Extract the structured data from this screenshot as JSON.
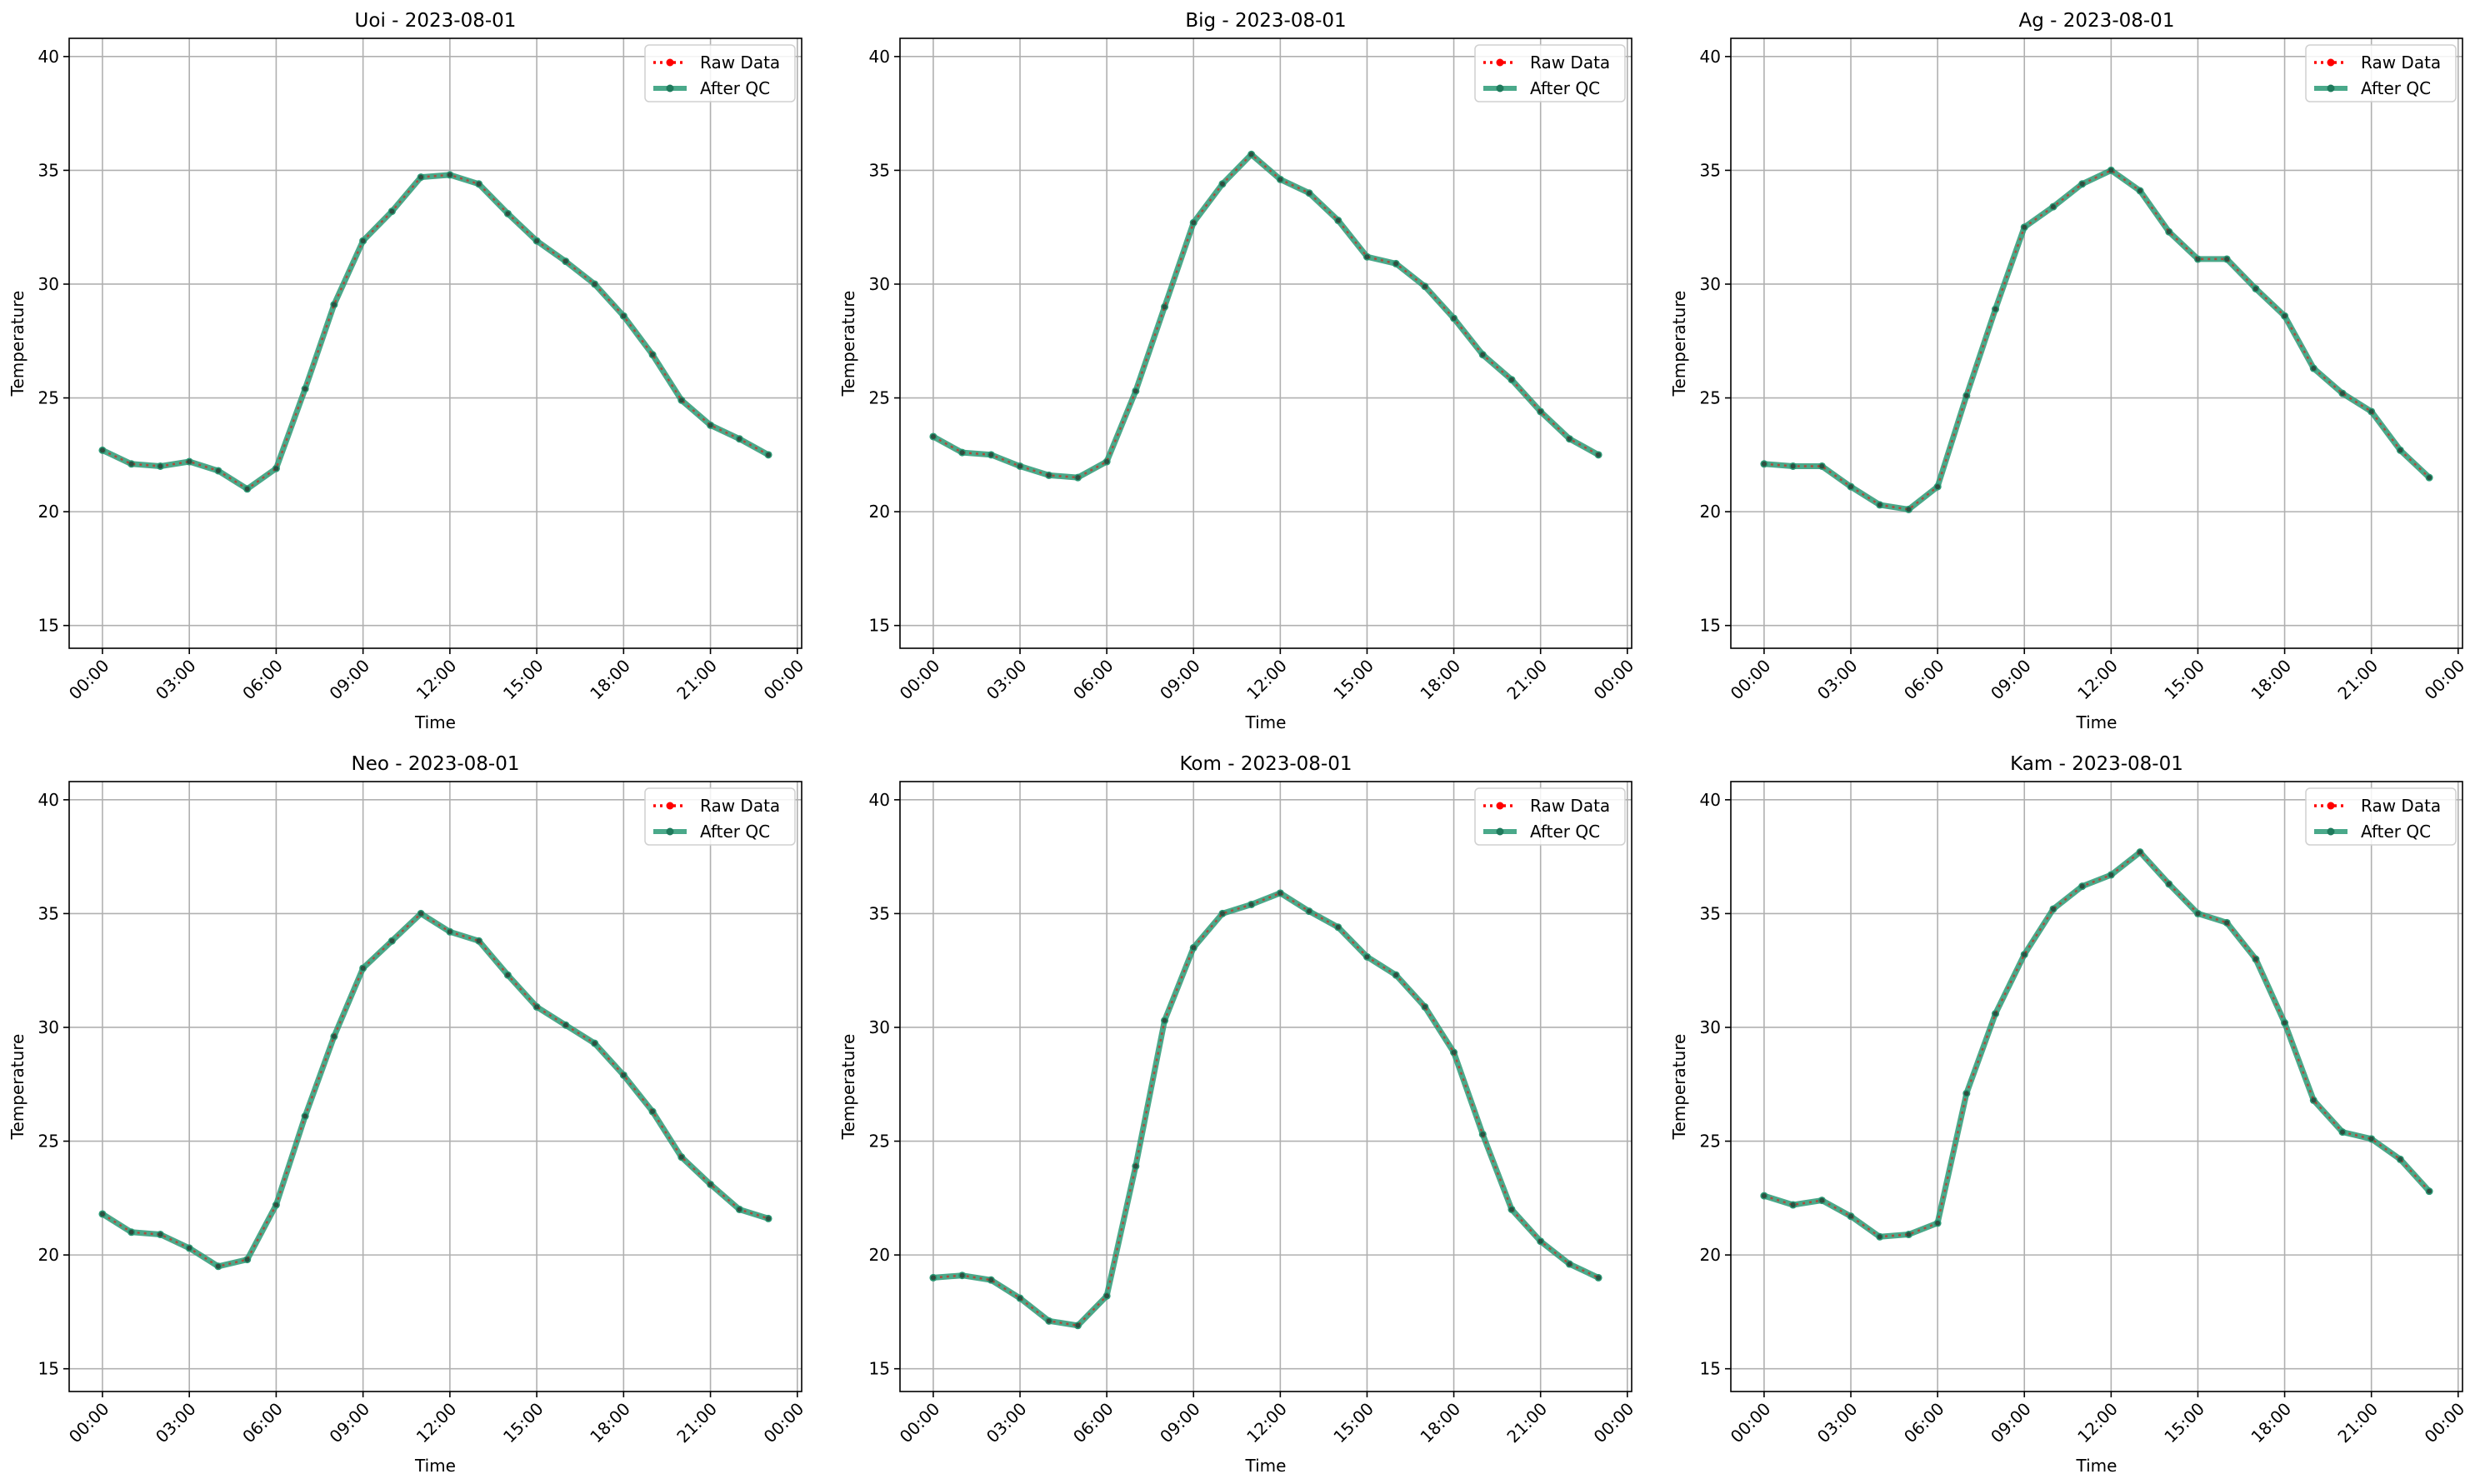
{
  "chart_data": [
    {
      "type": "line",
      "title": "Uoi - 2023-08-01",
      "xlabel": "Time",
      "ylabel": "Temperature",
      "xticks": [
        "00:00",
        "03:00",
        "06:00",
        "09:00",
        "12:00",
        "15:00",
        "18:00",
        "21:00",
        "00:00"
      ],
      "yticks": [
        "15",
        "20",
        "25",
        "30",
        "35",
        "40"
      ],
      "ylim": [
        14,
        40.8
      ],
      "legend": {
        "position": "top-right",
        "entries": [
          "Raw Data",
          "After QC"
        ]
      },
      "grid": true,
      "x": [
        0,
        1,
        2,
        3,
        4,
        5,
        6,
        7,
        8,
        9,
        10,
        11,
        12,
        13,
        14,
        15,
        16,
        17,
        18,
        19,
        20,
        21,
        22,
        23
      ],
      "series": [
        {
          "name": "Raw Data",
          "color": "#ff0000",
          "values": [
            22.7,
            22.1,
            22.0,
            22.2,
            21.8,
            21.0,
            21.9,
            25.4,
            29.1,
            31.9,
            33.2,
            34.7,
            34.8,
            34.4,
            33.1,
            31.9,
            31.0,
            30.0,
            28.6,
            26.9,
            24.9,
            23.8,
            23.2,
            22.5
          ]
        },
        {
          "name": "After QC",
          "color": "#2a9a75",
          "values": [
            22.7,
            22.1,
            22.0,
            22.2,
            21.8,
            21.0,
            21.9,
            25.4,
            29.1,
            31.9,
            33.2,
            34.7,
            34.8,
            34.4,
            33.1,
            31.9,
            31.0,
            30.0,
            28.6,
            26.9,
            24.9,
            23.8,
            23.2,
            22.5
          ]
        }
      ]
    },
    {
      "type": "line",
      "title": "Big - 2023-08-01",
      "xlabel": "Time",
      "ylabel": "Temperature",
      "xticks": [
        "00:00",
        "03:00",
        "06:00",
        "09:00",
        "12:00",
        "15:00",
        "18:00",
        "21:00",
        "00:00"
      ],
      "yticks": [
        "15",
        "20",
        "25",
        "30",
        "35",
        "40"
      ],
      "ylim": [
        14,
        40.8
      ],
      "legend": {
        "position": "top-right",
        "entries": [
          "Raw Data",
          "After QC"
        ]
      },
      "grid": true,
      "x": [
        0,
        1,
        2,
        3,
        4,
        5,
        6,
        7,
        8,
        9,
        10,
        11,
        12,
        13,
        14,
        15,
        16,
        17,
        18,
        19,
        20,
        21,
        22,
        23
      ],
      "series": [
        {
          "name": "Raw Data",
          "color": "#ff0000",
          "values": [
            23.3,
            22.6,
            22.5,
            22.0,
            21.6,
            21.5,
            22.2,
            25.3,
            29.0,
            32.7,
            34.4,
            35.7,
            34.6,
            34.0,
            32.8,
            31.2,
            30.9,
            29.9,
            28.5,
            26.9,
            25.8,
            24.4,
            23.2,
            22.5
          ]
        },
        {
          "name": "After QC",
          "color": "#2a9a75",
          "values": [
            23.3,
            22.6,
            22.5,
            22.0,
            21.6,
            21.5,
            22.2,
            25.3,
            29.0,
            32.7,
            34.4,
            35.7,
            34.6,
            34.0,
            32.8,
            31.2,
            30.9,
            29.9,
            28.5,
            26.9,
            25.8,
            24.4,
            23.2,
            22.5
          ]
        }
      ]
    },
    {
      "type": "line",
      "title": "Ag - 2023-08-01",
      "xlabel": "Time",
      "ylabel": "Temperature",
      "xticks": [
        "00:00",
        "03:00",
        "06:00",
        "09:00",
        "12:00",
        "15:00",
        "18:00",
        "21:00",
        "00:00"
      ],
      "yticks": [
        "15",
        "20",
        "25",
        "30",
        "35",
        "40"
      ],
      "ylim": [
        14,
        40.8
      ],
      "legend": {
        "position": "top-right",
        "entries": [
          "Raw Data",
          "After QC"
        ]
      },
      "grid": true,
      "x": [
        0,
        1,
        2,
        3,
        4,
        5,
        6,
        7,
        8,
        9,
        10,
        11,
        12,
        13,
        14,
        15,
        16,
        17,
        18,
        19,
        20,
        21,
        22,
        23
      ],
      "series": [
        {
          "name": "Raw Data",
          "color": "#ff0000",
          "values": [
            22.1,
            22.0,
            22.0,
            21.1,
            20.3,
            20.1,
            21.1,
            25.1,
            28.9,
            32.5,
            33.4,
            34.4,
            35.0,
            34.1,
            32.3,
            31.1,
            31.1,
            29.8,
            28.6,
            26.3,
            25.2,
            24.4,
            22.7,
            21.5
          ]
        },
        {
          "name": "After QC",
          "color": "#2a9a75",
          "values": [
            22.1,
            22.0,
            22.0,
            21.1,
            20.3,
            20.1,
            21.1,
            25.1,
            28.9,
            32.5,
            33.4,
            34.4,
            35.0,
            34.1,
            32.3,
            31.1,
            31.1,
            29.8,
            28.6,
            26.3,
            25.2,
            24.4,
            22.7,
            21.5
          ]
        }
      ]
    },
    {
      "type": "line",
      "title": "Neo - 2023-08-01",
      "xlabel": "Time",
      "ylabel": "Temperature",
      "xticks": [
        "00:00",
        "03:00",
        "06:00",
        "09:00",
        "12:00",
        "15:00",
        "18:00",
        "21:00",
        "00:00"
      ],
      "yticks": [
        "15",
        "20",
        "25",
        "30",
        "35",
        "40"
      ],
      "ylim": [
        14,
        40.8
      ],
      "legend": {
        "position": "top-right",
        "entries": [
          "Raw Data",
          "After QC"
        ]
      },
      "grid": true,
      "x": [
        0,
        1,
        2,
        3,
        4,
        5,
        6,
        7,
        8,
        9,
        10,
        11,
        12,
        13,
        14,
        15,
        16,
        17,
        18,
        19,
        20,
        21,
        22,
        23
      ],
      "series": [
        {
          "name": "Raw Data",
          "color": "#ff0000",
          "values": [
            21.8,
            21.0,
            20.9,
            20.3,
            19.5,
            19.8,
            22.2,
            26.1,
            29.6,
            32.6,
            33.8,
            35.0,
            34.2,
            33.8,
            32.3,
            30.9,
            30.1,
            29.3,
            27.9,
            26.3,
            24.3,
            23.1,
            22.0,
            21.6
          ]
        },
        {
          "name": "After QC",
          "color": "#2a9a75",
          "values": [
            21.8,
            21.0,
            20.9,
            20.3,
            19.5,
            19.8,
            22.2,
            26.1,
            29.6,
            32.6,
            33.8,
            35.0,
            34.2,
            33.8,
            32.3,
            30.9,
            30.1,
            29.3,
            27.9,
            26.3,
            24.3,
            23.1,
            22.0,
            21.6
          ]
        }
      ]
    },
    {
      "type": "line",
      "title": "Kom - 2023-08-01",
      "xlabel": "Time",
      "ylabel": "Temperature",
      "xticks": [
        "00:00",
        "03:00",
        "06:00",
        "09:00",
        "12:00",
        "15:00",
        "18:00",
        "21:00",
        "00:00"
      ],
      "yticks": [
        "15",
        "20",
        "25",
        "30",
        "35",
        "40"
      ],
      "ylim": [
        14,
        40.8
      ],
      "legend": {
        "position": "top-right",
        "entries": [
          "Raw Data",
          "After QC"
        ]
      },
      "grid": true,
      "x": [
        0,
        1,
        2,
        3,
        4,
        5,
        6,
        7,
        8,
        9,
        10,
        11,
        12,
        13,
        14,
        15,
        16,
        17,
        18,
        19,
        20,
        21,
        22,
        23
      ],
      "series": [
        {
          "name": "Raw Data",
          "color": "#ff0000",
          "values": [
            19.0,
            19.1,
            18.9,
            18.1,
            17.1,
            16.9,
            18.2,
            23.9,
            30.3,
            33.5,
            35.0,
            35.4,
            35.9,
            35.1,
            34.4,
            33.1,
            32.3,
            30.9,
            28.9,
            25.3,
            22.0,
            20.6,
            19.6,
            19.0
          ]
        },
        {
          "name": "After QC",
          "color": "#2a9a75",
          "values": [
            19.0,
            19.1,
            18.9,
            18.1,
            17.1,
            16.9,
            18.2,
            23.9,
            30.3,
            33.5,
            35.0,
            35.4,
            35.9,
            35.1,
            34.4,
            33.1,
            32.3,
            30.9,
            28.9,
            25.3,
            22.0,
            20.6,
            19.6,
            19.0
          ]
        }
      ]
    },
    {
      "type": "line",
      "title": "Kam - 2023-08-01",
      "xlabel": "Time",
      "ylabel": "Temperature",
      "xticks": [
        "00:00",
        "03:00",
        "06:00",
        "09:00",
        "12:00",
        "15:00",
        "18:00",
        "21:00",
        "00:00"
      ],
      "yticks": [
        "15",
        "20",
        "25",
        "30",
        "35",
        "40"
      ],
      "ylim": [
        14,
        40.8
      ],
      "legend": {
        "position": "top-right",
        "entries": [
          "Raw Data",
          "After QC"
        ]
      },
      "grid": true,
      "x": [
        0,
        1,
        2,
        3,
        4,
        5,
        6,
        7,
        8,
        9,
        10,
        11,
        12,
        13,
        14,
        15,
        16,
        17,
        18,
        19,
        20,
        21,
        22,
        23
      ],
      "series": [
        {
          "name": "Raw Data",
          "color": "#ff0000",
          "values": [
            22.6,
            22.2,
            22.4,
            21.7,
            20.8,
            20.9,
            21.4,
            27.1,
            30.6,
            33.2,
            35.2,
            36.2,
            36.7,
            37.7,
            36.3,
            35.0,
            34.6,
            33.0,
            30.2,
            26.8,
            25.4,
            25.1,
            24.2,
            22.8
          ]
        },
        {
          "name": "After QC",
          "color": "#2a9a75",
          "values": [
            22.6,
            22.2,
            22.4,
            21.7,
            20.8,
            20.9,
            21.4,
            27.1,
            30.6,
            33.2,
            35.2,
            36.2,
            36.7,
            37.7,
            36.3,
            35.0,
            34.6,
            33.0,
            30.2,
            26.8,
            25.4,
            25.1,
            24.2,
            22.8
          ]
        }
      ]
    }
  ]
}
